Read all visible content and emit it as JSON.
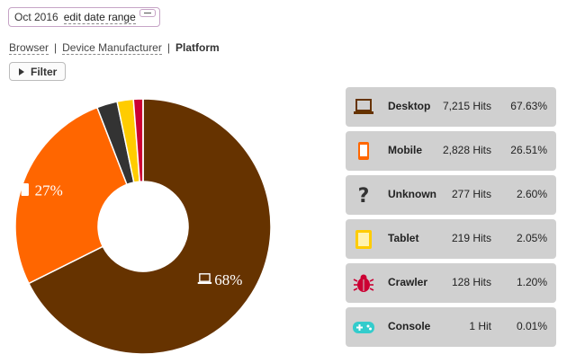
{
  "date_range": {
    "period": "Oct 2016",
    "edit_label": "edit date range"
  },
  "breadcrumb": {
    "items": [
      "Browser",
      "Device Manufacturer"
    ],
    "current": "Platform"
  },
  "filter": {
    "label": "Filter"
  },
  "chart_data": {
    "type": "pie",
    "style": "donut",
    "categories": [
      "Desktop",
      "Mobile",
      "Unknown",
      "Tablet",
      "Crawler",
      "Console"
    ],
    "values": [
      7215,
      2828,
      277,
      219,
      128,
      1
    ],
    "percent": [
      67.63,
      26.51,
      2.6,
      2.05,
      1.2,
      0.01
    ],
    "colors": [
      "#663300",
      "#ff6600",
      "#333333",
      "#ffcc00",
      "#cc0033",
      "#33cccc"
    ],
    "slice_labels": [
      {
        "index": 0,
        "icon": "laptop-icon",
        "text": "68%"
      },
      {
        "index": 1,
        "icon": "mobile-icon",
        "text": "27%"
      }
    ]
  },
  "legend": [
    {
      "name": "Desktop",
      "hits": "7,215 Hits",
      "percent": "67.63%",
      "icon": "laptop-icon",
      "color": "#663300"
    },
    {
      "name": "Mobile",
      "hits": "2,828 Hits",
      "percent": "26.51%",
      "icon": "mobile-icon",
      "color": "#ff6600"
    },
    {
      "name": "Unknown",
      "hits": "277 Hits",
      "percent": "2.60%",
      "icon": "question-icon",
      "color": "#333333"
    },
    {
      "name": "Tablet",
      "hits": "219 Hits",
      "percent": "2.05%",
      "icon": "tablet-icon",
      "color": "#ffcc00"
    },
    {
      "name": "Crawler",
      "hits": "128 Hits",
      "percent": "1.20%",
      "icon": "bug-icon",
      "color": "#cc0033"
    },
    {
      "name": "Console",
      "hits": "1 Hit",
      "percent": "0.01%",
      "icon": "gamepad-icon",
      "color": "#33cccc"
    }
  ]
}
